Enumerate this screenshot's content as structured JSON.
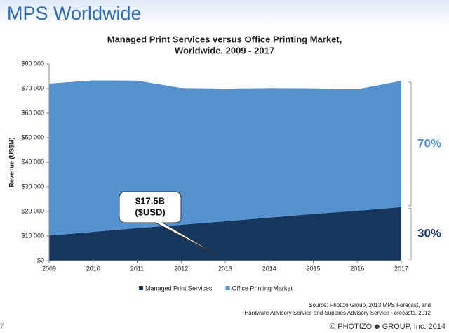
{
  "page_title": "MPS Worldwide",
  "page_number": "7",
  "footer": "© PHOTIZO ◆ GROUP, Inc. 2014",
  "source": [
    "Source: Photizo Group, 2013 MPS Forecast, and",
    "Hardware Advisory Service and Supplies Advisory Service Forecasts, 2012"
  ],
  "chart_data": {
    "type": "stacked_area",
    "title": [
      "Managed Print Services versus Office Printing Market,",
      "Worldwide, 2009 - 2017"
    ],
    "y_label": "Revenue (US$M)",
    "x": [
      2009,
      2010,
      2011,
      2012,
      2013,
      2014,
      2015,
      2016,
      2017
    ],
    "xlim": [
      2009,
      2017
    ],
    "xticks": [
      2009,
      2010,
      2011,
      2012,
      2013,
      2014,
      2015,
      2016,
      2017
    ],
    "ylim": [
      0,
      80000
    ],
    "yticks": [
      {
        "value": 0,
        "label": "$0"
      },
      {
        "value": 10000,
        "label": "$10 000"
      },
      {
        "value": 20000,
        "label": "$20 000"
      },
      {
        "value": 30000,
        "label": "$30 000"
      },
      {
        "value": 40000,
        "label": "$40 000"
      },
      {
        "value": 50000,
        "label": "$50 000"
      },
      {
        "value": 60000,
        "label": "$60 000"
      },
      {
        "value": 70000,
        "label": "$70 000"
      },
      {
        "value": 80000,
        "label": "$80 000"
      }
    ],
    "grid": false,
    "series": [
      {
        "name": "Managed Print Services",
        "color": "#17375e",
        "values": [
          10200,
          11700,
          13200,
          14600,
          16000,
          17500,
          19000,
          20300,
          21800
        ]
      },
      {
        "name": "Office Printing Market",
        "color": "#5591cf",
        "values": [
          61800,
          61600,
          60000,
          55600,
          54000,
          52700,
          51100,
          49400,
          51300
        ]
      }
    ],
    "callout": [
      "$17.5B",
      "($USD)"
    ],
    "share_labels": [
      "70%",
      "30%"
    ]
  }
}
